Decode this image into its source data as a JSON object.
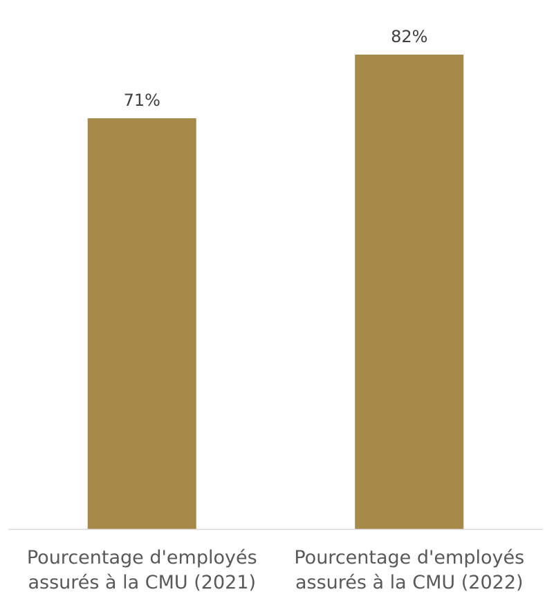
{
  "chart_data": {
    "type": "bar",
    "categories": [
      [
        "Pourcentage d'employés",
        "assurés à la CMU (2021)"
      ],
      [
        "Pourcentage d'employés",
        "assurés à la CMU (2022)"
      ]
    ],
    "values": [
      71,
      82
    ],
    "data_labels": [
      "71%",
      "82%"
    ],
    "title": "",
    "xlabel": "",
    "ylabel": "",
    "ylim": [
      0,
      82
    ],
    "grid": false,
    "legend": "none",
    "colors": {
      "bar": "#A68A4A",
      "axis": "#D9D9D9",
      "data_label": "#404040",
      "category_label": "#595959"
    }
  }
}
